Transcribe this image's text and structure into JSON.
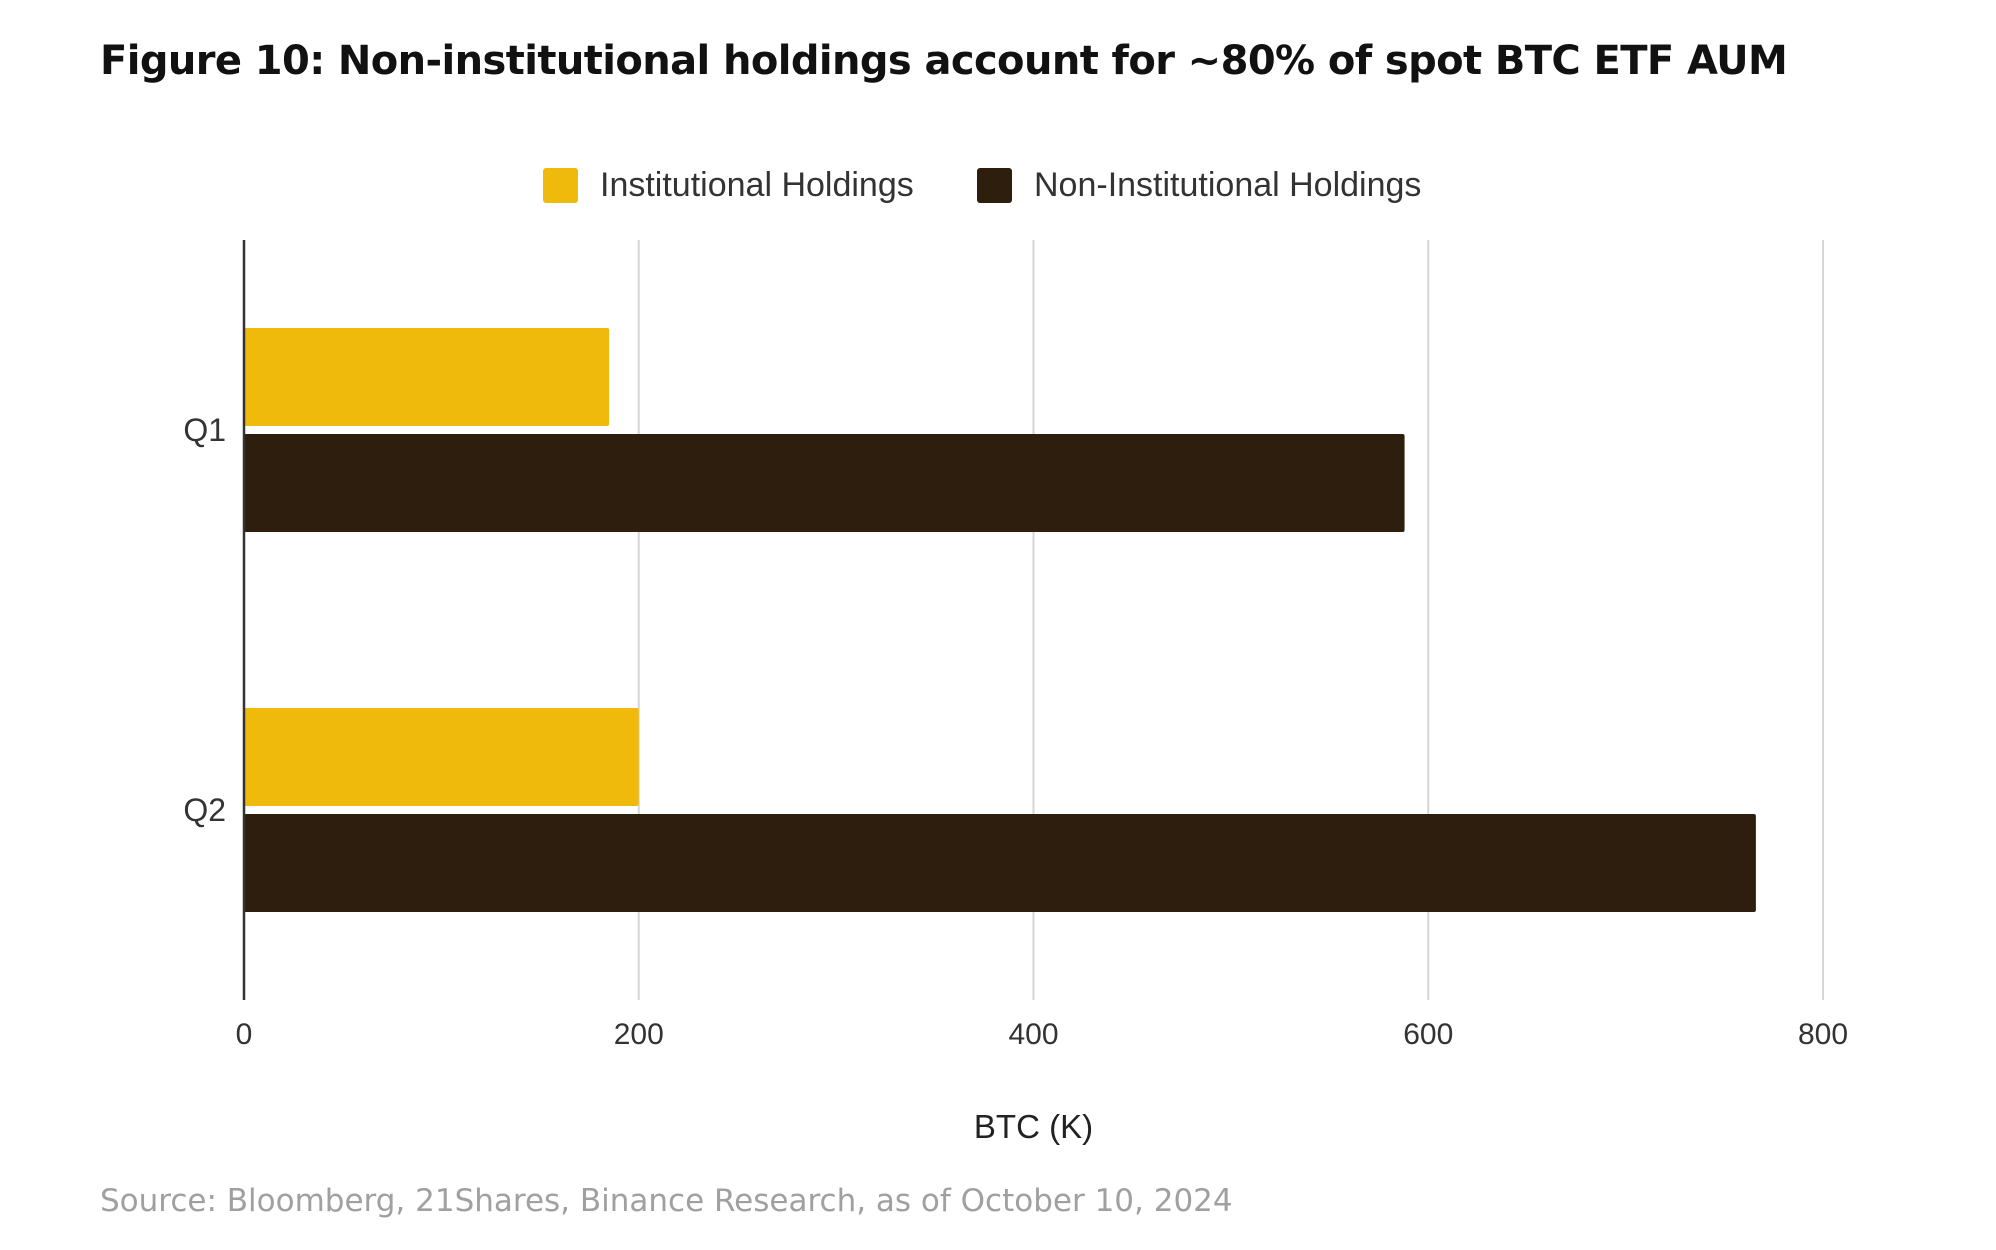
{
  "figure": {
    "title": "Figure 10: Non-institutional holdings account for ~80% of spot BTC ETF AUM",
    "source": "Source: Bloomberg, 21Shares, Binance Research, as of October 10, 2024"
  },
  "chart_data": {
    "type": "bar",
    "orientation": "horizontal",
    "categories": [
      "Q1",
      "Q2"
    ],
    "series": [
      {
        "name": "Institutional Holdings",
        "color": "#F0BA0C",
        "values": [
          185,
          200
        ]
      },
      {
        "name": "Non-Institutional Holdings",
        "color": "#2D1E0E",
        "values": [
          588,
          766
        ]
      }
    ],
    "xlabel": "BTC (K)",
    "ylabel": "",
    "xlim": [
      0,
      800
    ],
    "xticks": [
      0,
      200,
      400,
      600,
      800
    ],
    "grid": true,
    "legend_position": "top"
  }
}
